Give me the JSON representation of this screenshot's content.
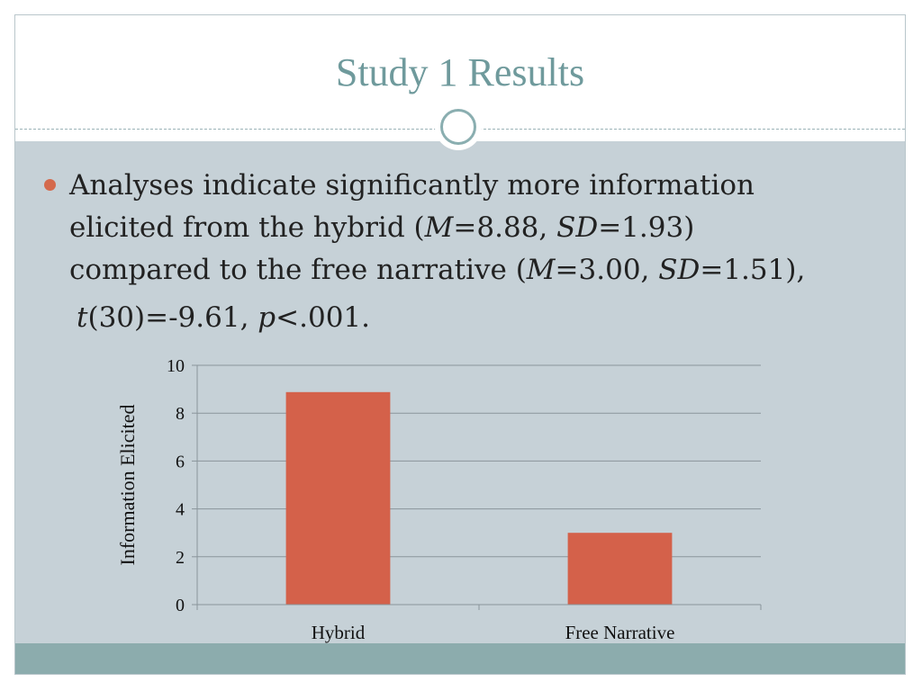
{
  "slide": {
    "title": "Study 1 Results"
  },
  "bullet": {
    "segments": [
      {
        "text": "Analyses indicate significantly more information",
        "italic": false,
        "line": 0
      },
      {
        "text": "elicited from the hybrid (",
        "italic": false,
        "line": 1
      },
      {
        "text": "M",
        "italic": true,
        "line": 1
      },
      {
        "text": "=8.88, ",
        "italic": false,
        "line": 1
      },
      {
        "text": "SD",
        "italic": true,
        "line": 1
      },
      {
        "text": "=1.93)",
        "italic": false,
        "line": 1
      },
      {
        "text": "compared to the free narrative (",
        "italic": false,
        "line": 2
      },
      {
        "text": "M",
        "italic": true,
        "line": 2
      },
      {
        "text": "=3.00, ",
        "italic": false,
        "line": 2
      },
      {
        "text": "SD",
        "italic": true,
        "line": 2
      },
      {
        "text": "=1.51),",
        "italic": false,
        "line": 2
      },
      {
        "text": "t",
        "italic": true,
        "line": 3
      },
      {
        "text": "(30)=-9.61, ",
        "italic": false,
        "line": 3
      },
      {
        "text": "p",
        "italic": true,
        "line": 3
      },
      {
        "text": "<.001.",
        "italic": false,
        "line": 3
      }
    ]
  },
  "colors": {
    "bar": "#d4614a",
    "grid": "#8a959b",
    "content_bg": "#c6d1d7",
    "accent": "#d46a4d",
    "title": "#6f9a9c"
  },
  "chart_data": {
    "type": "bar",
    "categories": [
      "Hybrid",
      "Free Narrative"
    ],
    "values": [
      8.88,
      3.0
    ],
    "title": "",
    "xlabel": "",
    "ylabel": "Information Elicited",
    "ylim": [
      0,
      10
    ],
    "yticks": [
      0,
      2,
      4,
      6,
      8,
      10
    ],
    "grid": true,
    "legend": "none"
  }
}
